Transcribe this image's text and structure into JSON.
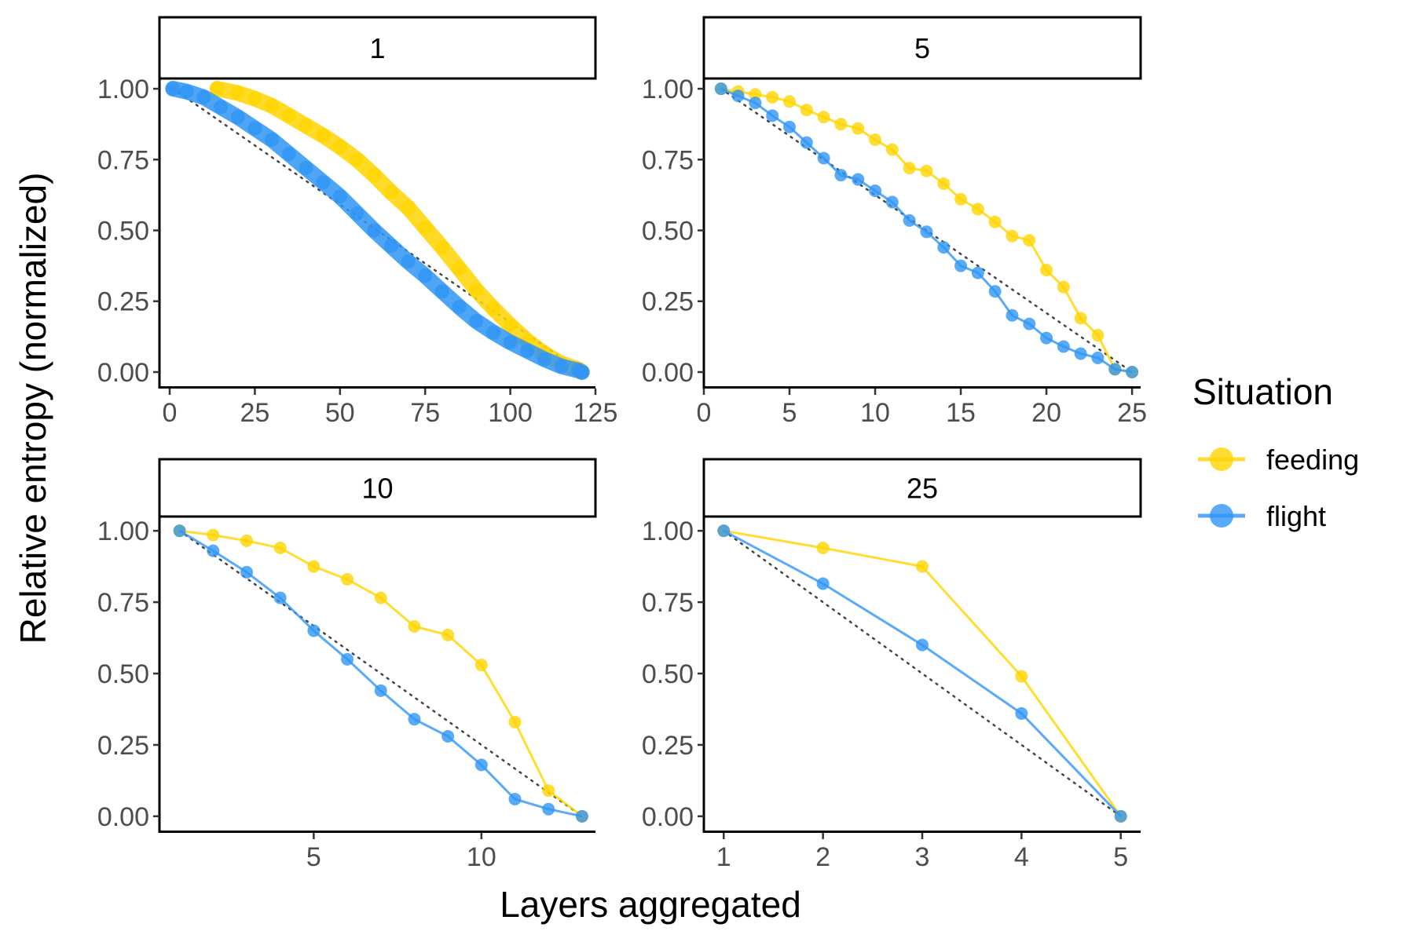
{
  "chart_data": {
    "type": "line",
    "xlabel": "Layers aggregated",
    "ylabel": "Relative entropy (normalized)",
    "legend": {
      "title": "Situation",
      "placement": "right",
      "entries": [
        {
          "name": "feeding",
          "color": "#FFD400"
        },
        {
          "name": "flight",
          "color": "#2F95F5"
        }
      ]
    },
    "reference_line_color": "#444444",
    "panels": [
      {
        "strip": "1",
        "xlim": [
          -3,
          125
        ],
        "xticks": [
          0,
          25,
          50,
          75,
          100,
          125
        ],
        "ylim": [
          -0.05,
          1.05
        ],
        "yticks": [
          0.0,
          0.25,
          0.5,
          0.75,
          1.0
        ],
        "ytick_labels": [
          "0.00",
          "0.25",
          "0.50",
          "0.75",
          "1.00"
        ],
        "reference_line": {
          "x": [
            1,
            121
          ],
          "y": [
            1,
            0
          ]
        },
        "series": [
          {
            "name": "feeding",
            "x": [
              14,
              20,
              25,
              30,
              35,
              40,
              45,
              50,
              55,
              60,
              65,
              70,
              75,
              80,
              85,
              90,
              95,
              100,
              105,
              110,
              115,
              120,
              121
            ],
            "y": [
              1.0,
              0.985,
              0.965,
              0.94,
              0.905,
              0.87,
              0.835,
              0.795,
              0.75,
              0.695,
              0.635,
              0.58,
              0.51,
              0.44,
              0.365,
              0.29,
              0.225,
              0.165,
              0.11,
              0.065,
              0.03,
              0.01,
              0.0
            ]
          },
          {
            "name": "flight",
            "x": [
              1,
              5,
              10,
              15,
              20,
              25,
              30,
              35,
              40,
              45,
              50,
              55,
              60,
              65,
              70,
              75,
              80,
              85,
              90,
              95,
              100,
              105,
              110,
              115,
              120,
              121
            ],
            "y": [
              1.0,
              0.99,
              0.97,
              0.935,
              0.9,
              0.86,
              0.82,
              0.77,
              0.72,
              0.67,
              0.62,
              0.56,
              0.5,
              0.445,
              0.39,
              0.34,
              0.285,
              0.23,
              0.18,
              0.14,
              0.105,
              0.075,
              0.045,
              0.02,
              0.005,
              0.0
            ]
          }
        ]
      },
      {
        "strip": "5",
        "xlim": [
          0,
          25.5
        ],
        "xticks": [
          0,
          5,
          10,
          15,
          20,
          25
        ],
        "ylim": [
          -0.05,
          1.05
        ],
        "yticks": [
          0.0,
          0.25,
          0.5,
          0.75,
          1.0
        ],
        "ytick_labels": [
          "0.00",
          "0.25",
          "0.50",
          "0.75",
          "1.00"
        ],
        "reference_line": {
          "x": [
            1,
            25
          ],
          "y": [
            1,
            0
          ]
        },
        "series": [
          {
            "name": "feeding",
            "x": [
              1,
              2,
              3,
              4,
              5,
              6,
              7,
              8,
              9,
              10,
              11,
              12,
              13,
              14,
              15,
              16,
              17,
              18,
              19,
              20,
              21,
              22,
              23,
              24,
              25
            ],
            "y": [
              1.0,
              0.99,
              0.98,
              0.97,
              0.955,
              0.925,
              0.9,
              0.875,
              0.86,
              0.82,
              0.785,
              0.72,
              0.71,
              0.665,
              0.61,
              0.575,
              0.53,
              0.48,
              0.465,
              0.36,
              0.3,
              0.19,
              0.13,
              0.01,
              0.0
            ]
          },
          {
            "name": "flight",
            "x": [
              1,
              2,
              3,
              4,
              5,
              6,
              7,
              8,
              9,
              10,
              11,
              12,
              13,
              14,
              15,
              16,
              17,
              18,
              19,
              20,
              21,
              22,
              23,
              24,
              25
            ],
            "y": [
              1.0,
              0.975,
              0.95,
              0.905,
              0.865,
              0.81,
              0.755,
              0.695,
              0.68,
              0.64,
              0.6,
              0.535,
              0.495,
              0.44,
              0.375,
              0.35,
              0.285,
              0.2,
              0.17,
              0.12,
              0.09,
              0.065,
              0.05,
              0.01,
              0.0
            ]
          }
        ]
      },
      {
        "strip": "10",
        "xlim": [
          0.4,
          13.4
        ],
        "xticks": [
          5,
          10
        ],
        "ylim": [
          -0.05,
          1.05
        ],
        "yticks": [
          0.0,
          0.25,
          0.5,
          0.75,
          1.0
        ],
        "ytick_labels": [
          "0.00",
          "0.25",
          "0.50",
          "0.75",
          "1.00"
        ],
        "reference_line": {
          "x": [
            1,
            13
          ],
          "y": [
            1,
            0
          ]
        },
        "series": [
          {
            "name": "feeding",
            "x": [
              1,
              2,
              3,
              4,
              5,
              6,
              7,
              8,
              9,
              10,
              11,
              12,
              13
            ],
            "y": [
              1.0,
              0.985,
              0.965,
              0.94,
              0.875,
              0.83,
              0.765,
              0.665,
              0.635,
              0.53,
              0.33,
              0.09,
              0.0
            ]
          },
          {
            "name": "flight",
            "x": [
              1,
              2,
              3,
              4,
              5,
              6,
              7,
              8,
              9,
              10,
              11,
              12,
              13
            ],
            "y": [
              1.0,
              0.93,
              0.855,
              0.765,
              0.65,
              0.55,
              0.44,
              0.34,
              0.28,
              0.18,
              0.06,
              0.025,
              0.0
            ]
          }
        ]
      },
      {
        "strip": "25",
        "xlim": [
          0.8,
          5.2
        ],
        "xticks": [
          1,
          2,
          3,
          4,
          5
        ],
        "ylim": [
          -0.05,
          1.05
        ],
        "yticks": [
          0.0,
          0.25,
          0.5,
          0.75,
          1.0
        ],
        "ytick_labels": [
          "0.00",
          "0.25",
          "0.50",
          "0.75",
          "1.00"
        ],
        "reference_line": {
          "x": [
            1,
            5
          ],
          "y": [
            1,
            0
          ]
        },
        "series": [
          {
            "name": "feeding",
            "x": [
              1,
              2,
              3,
              4,
              5
            ],
            "y": [
              1.0,
              0.94,
              0.875,
              0.49,
              0.0
            ]
          },
          {
            "name": "flight",
            "x": [
              1,
              2,
              3,
              4,
              5
            ],
            "y": [
              1.0,
              0.815,
              0.6,
              0.36,
              0.0
            ]
          }
        ]
      }
    ]
  }
}
